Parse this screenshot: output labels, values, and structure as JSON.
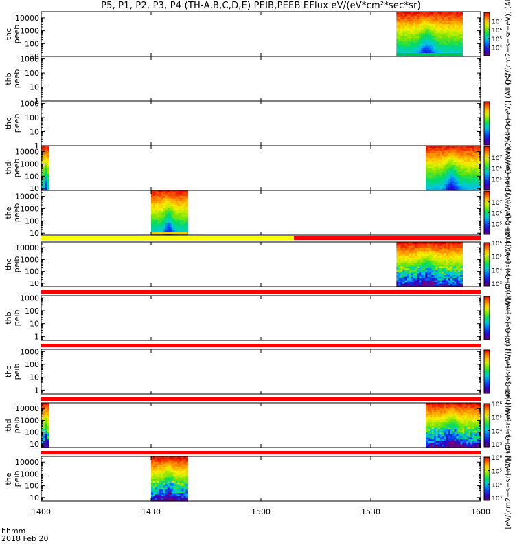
{
  "title": "P5, P1, P2, P3, P4 (TH-A,B,C,D,E) PEIB,PEEB EFlux eV/(eV*cm²*sec*sr)",
  "footer": {
    "time_label": "hhmm",
    "date_label": "2018 Feb 20"
  },
  "colors": {
    "flag_yellow": "#ffff00",
    "flag_red": "#ff0000",
    "axis": "#000000"
  },
  "chart_data": {
    "type": "heatmap",
    "x_axis": {
      "unit": "hhmm",
      "range": [
        "1400",
        "1600"
      ],
      "ticks": [
        "1400",
        "1430",
        "1500",
        "1530",
        "1600"
      ]
    },
    "panels": [
      {
        "probe": "thc",
        "instrument": "peeb",
        "ylim": [
          10,
          30000
        ],
        "yticks": [
          "10",
          "100",
          "1000",
          "10000"
        ],
        "data_span": [
          "1537",
          "1555"
        ],
        "bottom_band": "green",
        "colorbar": {
          "label": "[eV/(cm2−s−sr−eV)] (All Qs)",
          "ticks": [
            "10⁴",
            "10⁵",
            "10⁶",
            "10⁷"
          ],
          "lo": 3,
          "hi": 8
        }
      },
      {
        "probe": "thb",
        "instrument": "peeb",
        "ylim": [
          1,
          1500
        ],
        "yticks": [
          "1",
          "10",
          "100",
          "1000"
        ],
        "data_span": null
      },
      {
        "probe": "thc",
        "instrument": "peeb",
        "ylim": [
          1,
          1500
        ],
        "yticks": [
          "1",
          "10",
          "100",
          "1000"
        ],
        "data_span": null,
        "colorbar": {
          "label": "[eV/(cm2−s−sr−eV)] (All Qs)",
          "ticks": [],
          "lo": 3,
          "hi": 8
        }
      },
      {
        "probe": "thd",
        "instrument": "peeb",
        "ylim": [
          7,
          30000
        ],
        "yticks": [
          "10",
          "100",
          "1000",
          "10000"
        ],
        "data_span": [
          "1545",
          "1600"
        ],
        "left_strip": [
          "1400",
          "1402"
        ],
        "colorbar": {
          "label": "[eV/(cm2−s−sr−eV)] (All Qs)",
          "ticks": [
            "10⁵",
            "10⁶",
            "10⁷"
          ],
          "lo": 4,
          "hi": 8
        }
      },
      {
        "probe": "the",
        "instrument": "peeb",
        "ylim": [
          7,
          30000
        ],
        "yticks": [
          "10",
          "100",
          "1000",
          "10000"
        ],
        "data_span": [
          "1430",
          "1440"
        ],
        "bottom_band": "yellow",
        "colorbar": {
          "label": "[eV/(cm2−s−sr−eV)] (All Qs)",
          "ticks": [
            "10⁵",
            "10⁶",
            "10⁷"
          ],
          "lo": 4,
          "hi": 8
        }
      },
      {
        "probe": "thc",
        "instrument": "peib",
        "ylim": [
          5,
          30000
        ],
        "yticks": [
          "10",
          "100",
          "1000",
          "10000"
        ],
        "data_span": [
          "1537",
          "1555"
        ],
        "flag_bar": {
          "yellow_until": "1509"
        },
        "colorbar": {
          "label": "[eV/(cm2−s−sr−eV)] (All Qs)",
          "ticks": [
            "10³",
            "10⁴",
            "10⁵",
            "10⁶"
          ],
          "lo": 2.8,
          "hi": 6
        }
      },
      {
        "probe": "thb",
        "instrument": "peib",
        "ylim": [
          0.5,
          1500
        ],
        "yticks": [
          "1",
          "10",
          "100",
          "1000"
        ],
        "data_span": null,
        "flag_bar": {
          "yellow_until": null
        },
        "colorbar": {
          "label": "[eV/(cm2−s−sr−eV)] (All Qs)",
          "ticks": [],
          "lo": 3,
          "hi": 6
        }
      },
      {
        "probe": "thc",
        "instrument": "peib",
        "ylim": [
          0.5,
          1500
        ],
        "yticks": [
          "1",
          "10",
          "100",
          "1000"
        ],
        "data_span": null,
        "flag_bar": {
          "yellow_until": null
        },
        "colorbar": {
          "label": "[eV/(cm2−s−sr−eV)] (All Qs)",
          "ticks": [],
          "lo": 3,
          "hi": 6
        }
      },
      {
        "probe": "thd",
        "instrument": "peib",
        "ylim": [
          5,
          30000
        ],
        "yticks": [
          "10",
          "100",
          "1000",
          "10000"
        ],
        "data_span": [
          "1545",
          "1600"
        ],
        "left_strip": [
          "1400",
          "1402"
        ],
        "flag_bar": {
          "yellow_until": null
        },
        "colorbar": {
          "label": "[eV/(cm2−s−sr−eV)] (All Qs)",
          "ticks": [
            "10³",
            "10⁴",
            "10⁵",
            "10⁶"
          ],
          "lo": 2.8,
          "hi": 6
        }
      },
      {
        "probe": "the",
        "instrument": "peib",
        "ylim": [
          5,
          30000
        ],
        "yticks": [
          "10",
          "100",
          "1000",
          "10000"
        ],
        "data_span": [
          "1430",
          "1440"
        ],
        "flag_bar": {
          "yellow_until": null
        },
        "colorbar": {
          "label": "[eV/(cm2−s−sr−eV)] (All Qs)",
          "ticks": [
            "10³",
            "10⁴",
            "10⁵",
            "10⁶"
          ],
          "lo": 2.8,
          "hi": 6
        }
      }
    ]
  }
}
